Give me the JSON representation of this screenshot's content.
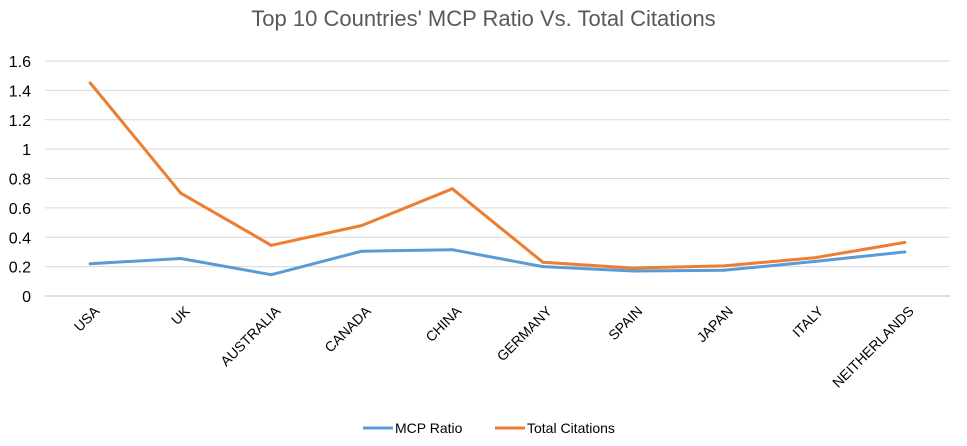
{
  "chart_data": {
    "type": "line",
    "title": "Top 10 Countries' MCP Ratio Vs. Total Citations",
    "categories": [
      "USA",
      "UK",
      "AUSTRALIA",
      "CANADA",
      "CHINA",
      "GERMANY",
      "SPAIN",
      "JAPAN",
      "ITALY",
      "NEITHERLANDS"
    ],
    "series": [
      {
        "name": "MCP Ratio",
        "color": "#5b9bd5",
        "values": [
          0.22,
          0.255,
          0.145,
          0.305,
          0.315,
          0.2,
          0.17,
          0.175,
          0.235,
          0.3
        ]
      },
      {
        "name": "Total Citations",
        "color": "#ed7d31",
        "values": [
          1.45,
          0.7,
          0.345,
          0.48,
          0.73,
          0.23,
          0.19,
          0.205,
          0.26,
          0.365
        ]
      }
    ],
    "ylim": [
      0,
      1.6
    ],
    "yticks": [
      "0",
      "0.2",
      "0.4",
      "0.6",
      "0.8",
      "1",
      "1.2",
      "1.4",
      "1.6"
    ],
    "grid": true,
    "legend_position": "bottom"
  }
}
